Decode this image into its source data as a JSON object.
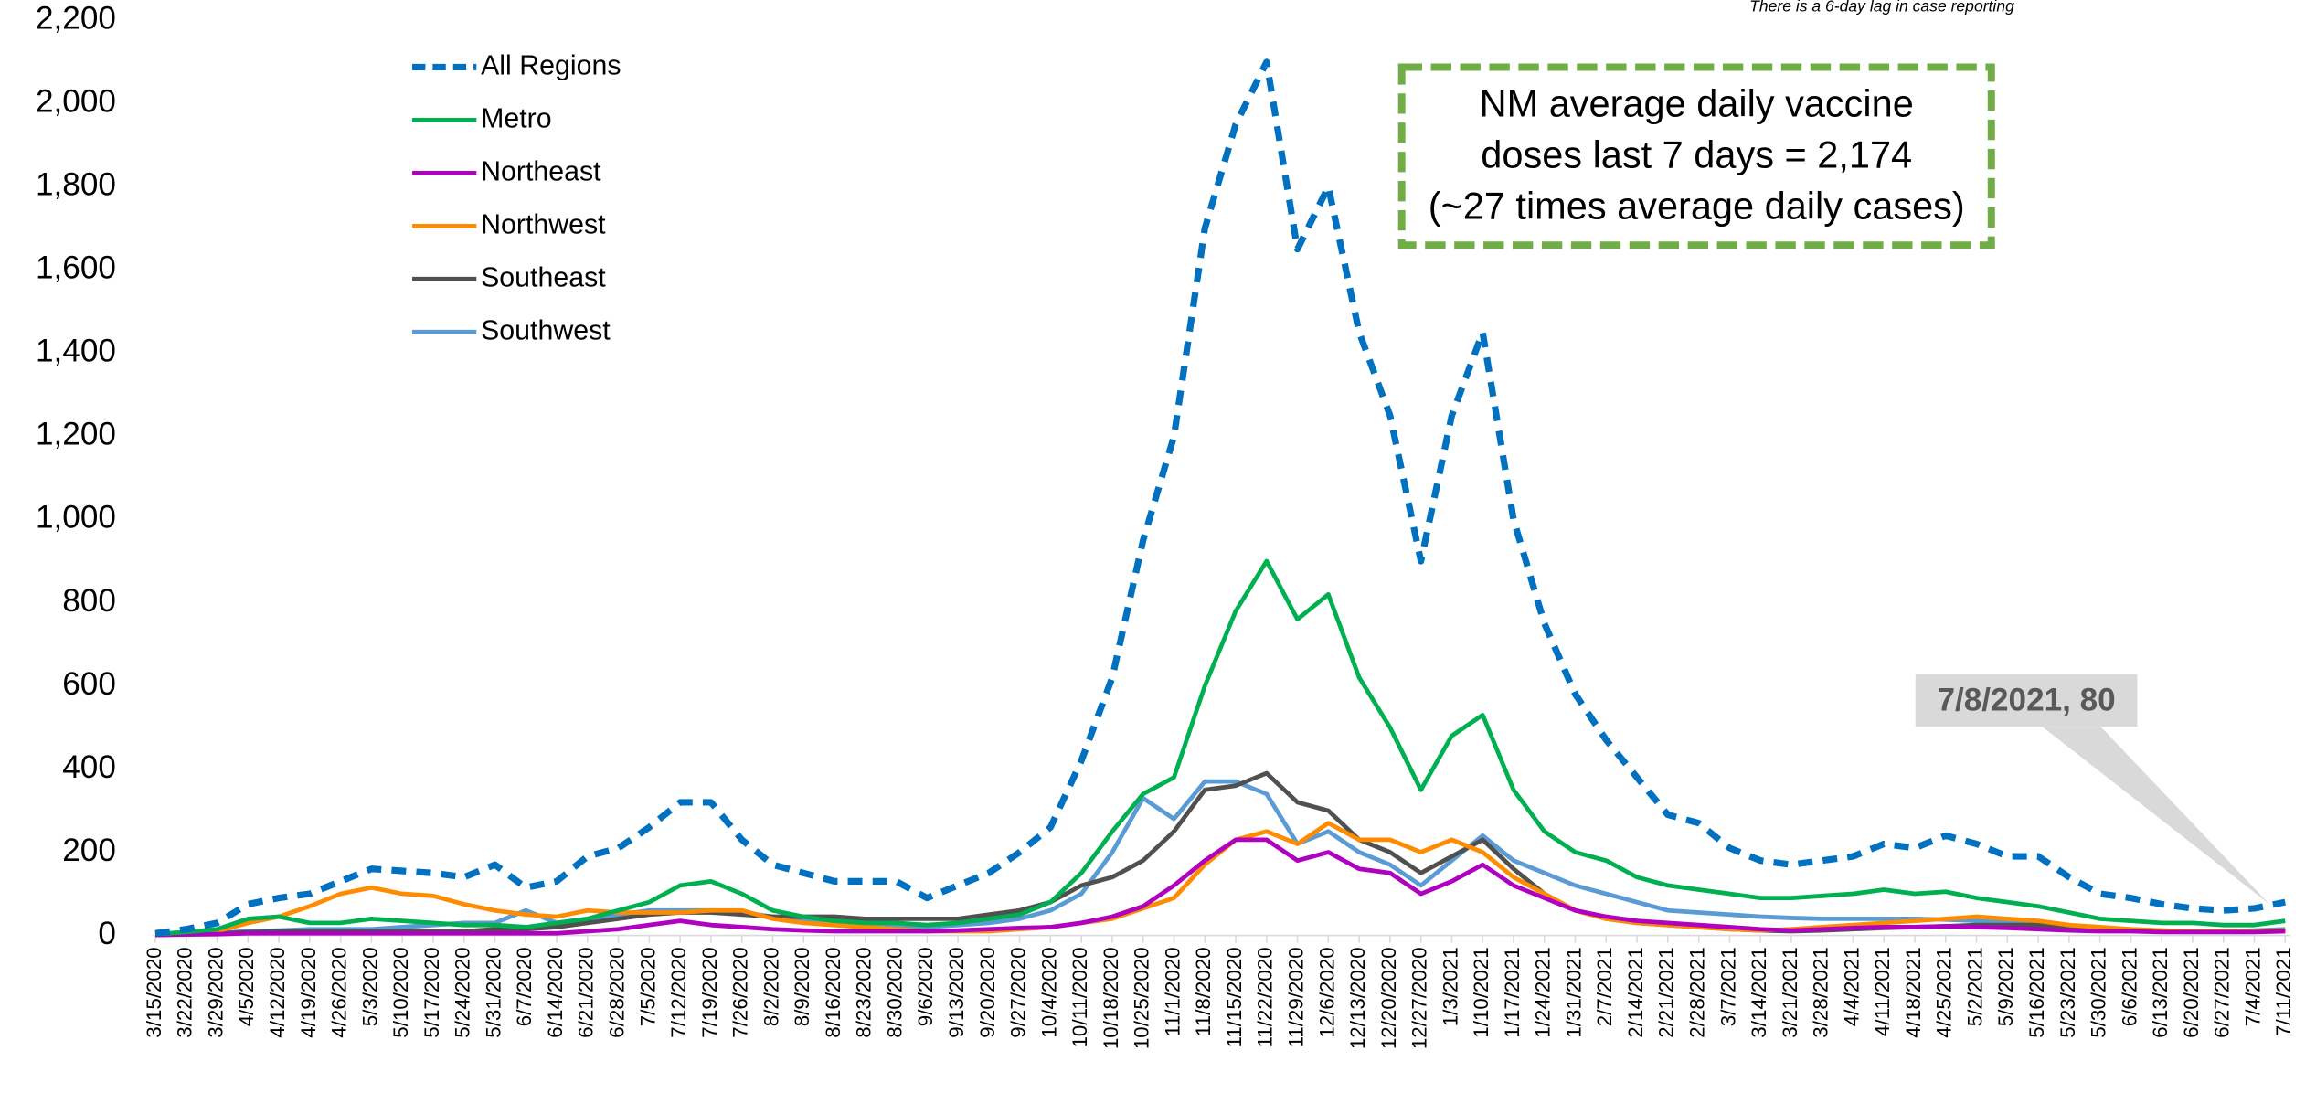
{
  "chart_data": {
    "type": "line",
    "note": "There is a 6-day lag in case reporting",
    "annotation_box": [
      "NM average daily vaccine",
      "doses last 7 days = 2,174",
      "(~27 times average daily cases)"
    ],
    "callout": "7/8/2021, 80",
    "categories": [
      "3/15/2020",
      "3/22/2020",
      "3/29/2020",
      "4/5/2020",
      "4/12/2020",
      "4/19/2020",
      "4/26/2020",
      "5/3/2020",
      "5/10/2020",
      "5/17/2020",
      "5/24/2020",
      "5/31/2020",
      "6/7/2020",
      "6/14/2020",
      "6/21/2020",
      "6/28/2020",
      "7/5/2020",
      "7/12/2020",
      "7/19/2020",
      "7/26/2020",
      "8/2/2020",
      "8/9/2020",
      "8/16/2020",
      "8/23/2020",
      "8/30/2020",
      "9/6/2020",
      "9/13/2020",
      "9/20/2020",
      "9/27/2020",
      "10/4/2020",
      "10/11/2020",
      "10/18/2020",
      "10/25/2020",
      "11/1/2020",
      "11/8/2020",
      "11/15/2020",
      "11/22/2020",
      "11/29/2020",
      "12/6/2020",
      "12/13/2020",
      "12/20/2020",
      "12/27/2020",
      "1/3/2021",
      "1/10/2021",
      "1/17/2021",
      "1/24/2021",
      "1/31/2021",
      "2/7/2021",
      "2/14/2021",
      "2/21/2021",
      "2/28/2021",
      "3/7/2021",
      "3/14/2021",
      "3/21/2021",
      "3/28/2021",
      "4/4/2021",
      "4/11/2021",
      "4/18/2021",
      "4/25/2021",
      "5/2/2021",
      "5/9/2021",
      "5/16/2021",
      "5/23/2021",
      "5/30/2021",
      "6/6/2021",
      "6/13/2021",
      "6/20/2021",
      "6/27/2021",
      "7/4/2021",
      "7/11/2021"
    ],
    "series": [
      {
        "name": "All Regions",
        "color": "#0070c0",
        "line_style": "dashed",
        "values": [
          5,
          15,
          30,
          75,
          90,
          100,
          130,
          160,
          155,
          150,
          140,
          170,
          115,
          130,
          190,
          210,
          260,
          320,
          320,
          230,
          170,
          150,
          130,
          130,
          130,
          90,
          120,
          150,
          200,
          260,
          420,
          620,
          950,
          1200,
          1700,
          1950,
          2100,
          1650,
          1800,
          1450,
          1250,
          900,
          1250,
          1450,
          1000,
          750,
          580,
          470,
          380,
          290,
          270,
          210,
          180,
          170,
          180,
          190,
          220,
          210,
          240,
          220,
          190,
          190,
          140,
          100,
          90,
          75,
          65,
          60,
          65,
          80
        ]
      },
      {
        "name": "Metro",
        "color": "#00b050",
        "line_style": "solid",
        "values": [
          3,
          8,
          15,
          40,
          45,
          30,
          30,
          40,
          35,
          30,
          25,
          25,
          20,
          30,
          40,
          60,
          80,
          120,
          130,
          100,
          60,
          45,
          35,
          30,
          30,
          25,
          30,
          40,
          50,
          80,
          150,
          250,
          340,
          380,
          600,
          780,
          900,
          760,
          820,
          620,
          500,
          350,
          480,
          530,
          350,
          250,
          200,
          180,
          140,
          120,
          110,
          100,
          90,
          90,
          95,
          100,
          110,
          100,
          105,
          90,
          80,
          70,
          55,
          40,
          35,
          30,
          30,
          25,
          25,
          35
        ]
      },
      {
        "name": "Northeast",
        "color": "#b000c0",
        "line_style": "solid",
        "values": [
          1,
          2,
          3,
          5,
          5,
          5,
          5,
          5,
          5,
          5,
          5,
          5,
          5,
          5,
          10,
          15,
          25,
          35,
          25,
          20,
          15,
          12,
          10,
          10,
          10,
          10,
          12,
          15,
          18,
          20,
          30,
          45,
          70,
          120,
          180,
          230,
          230,
          180,
          200,
          160,
          150,
          100,
          130,
          170,
          120,
          90,
          60,
          45,
          35,
          30,
          25,
          20,
          15,
          12,
          15,
          18,
          20,
          20,
          22,
          20,
          18,
          15,
          12,
          10,
          10,
          8,
          8,
          8,
          8,
          10
        ]
      },
      {
        "name": "Northwest",
        "color": "#ff8c00",
        "line_style": "solid",
        "values": [
          2,
          5,
          10,
          30,
          45,
          70,
          100,
          115,
          100,
          95,
          75,
          60,
          50,
          45,
          60,
          55,
          55,
          55,
          60,
          60,
          40,
          30,
          25,
          20,
          15,
          10,
          10,
          10,
          15,
          20,
          30,
          40,
          65,
          90,
          170,
          230,
          250,
          220,
          270,
          230,
          230,
          200,
          230,
          200,
          140,
          100,
          60,
          40,
          30,
          25,
          20,
          15,
          12,
          15,
          20,
          25,
          30,
          35,
          40,
          45,
          40,
          35,
          25,
          20,
          15,
          12,
          10,
          10,
          10,
          12
        ]
      },
      {
        "name": "Southeast",
        "color": "#505050",
        "line_style": "solid",
        "values": [
          1,
          3,
          5,
          8,
          10,
          10,
          10,
          10,
          10,
          10,
          10,
          15,
          15,
          20,
          30,
          40,
          50,
          55,
          55,
          50,
          45,
          45,
          45,
          40,
          40,
          40,
          40,
          50,
          60,
          80,
          120,
          140,
          180,
          250,
          350,
          360,
          390,
          320,
          300,
          230,
          200,
          150,
          190,
          230,
          160,
          100,
          60,
          40,
          30,
          25,
          20,
          15,
          12,
          10,
          12,
          15,
          18,
          20,
          22,
          25,
          25,
          25,
          20,
          15,
          12,
          10,
          10,
          10,
          10,
          12
        ]
      },
      {
        "name": "Southwest",
        "color": "#5b9bd5",
        "line_style": "solid",
        "values": [
          2,
          4,
          6,
          10,
          12,
          15,
          15,
          15,
          20,
          25,
          30,
          30,
          60,
          30,
          40,
          50,
          60,
          60,
          60,
          55,
          45,
          35,
          30,
          25,
          25,
          20,
          25,
          30,
          40,
          60,
          100,
          200,
          330,
          280,
          370,
          370,
          340,
          220,
          250,
          200,
          170,
          120,
          180,
          240,
          180,
          150,
          120,
          100,
          80,
          60,
          55,
          50,
          45,
          42,
          40,
          40,
          40,
          40,
          38,
          35,
          30,
          25,
          20,
          18,
          15,
          12,
          10,
          10,
          12,
          15
        ]
      }
    ],
    "ylim": [
      0,
      2200
    ],
    "yticks": [
      0,
      200,
      400,
      600,
      800,
      {
        "value": 1000,
        "label": "1,000"
      },
      {
        "value": 1200,
        "label": "1,200"
      },
      {
        "value": 1400,
        "label": "1,400"
      },
      {
        "value": 1600,
        "label": "1,600"
      },
      {
        "value": 1800,
        "label": "1,800"
      },
      {
        "value": 2000,
        "label": "2,000"
      },
      {
        "value": 2200,
        "label": "2,200"
      }
    ],
    "grid": false,
    "legend": "upper-left"
  }
}
